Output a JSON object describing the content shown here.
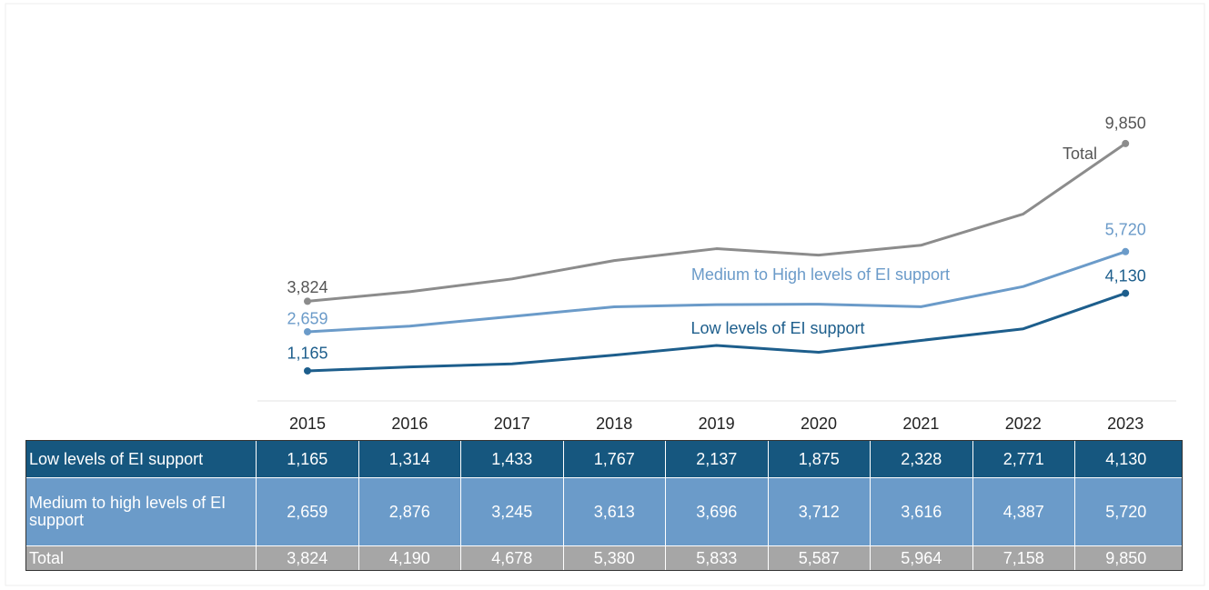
{
  "chart_data": {
    "type": "line",
    "categories": [
      "2015",
      "2016",
      "2017",
      "2018",
      "2019",
      "2020",
      "2021",
      "2022",
      "2023"
    ],
    "ylim": [
      0,
      12000
    ],
    "series": [
      {
        "name": "Low levels of EI support",
        "color": "#1d5e8c",
        "values": [
          1165,
          1314,
          1433,
          1767,
          2137,
          1875,
          2328,
          2771,
          4130
        ],
        "value_labels": [
          "1,165",
          "1,314",
          "1,433",
          "1,767",
          "2,137",
          "1,875",
          "2,328",
          "2,771",
          "4,130"
        ]
      },
      {
        "name": "Medium to High levels of EI support",
        "color": "#6b9bc9",
        "values": [
          2659,
          2876,
          3245,
          3613,
          3696,
          3712,
          3616,
          4387,
          5720
        ],
        "value_labels": [
          "2,659",
          "2,876",
          "3,245",
          "3,613",
          "3,696",
          "3,712",
          "3,616",
          "4,387",
          "5,720"
        ]
      },
      {
        "name": "Total",
        "color": "#8c8c8c",
        "values": [
          3824,
          4190,
          4678,
          5380,
          5833,
          5587,
          5964,
          7158,
          9850
        ],
        "value_labels": [
          "3,824",
          "4,190",
          "4,678",
          "5,380",
          "5,833",
          "5,587",
          "5,964",
          "7,158",
          "9,850"
        ]
      }
    ],
    "row_labels": [
      "Low levels of EI support",
      "Medium to high levels of EI support",
      "Total"
    ]
  }
}
